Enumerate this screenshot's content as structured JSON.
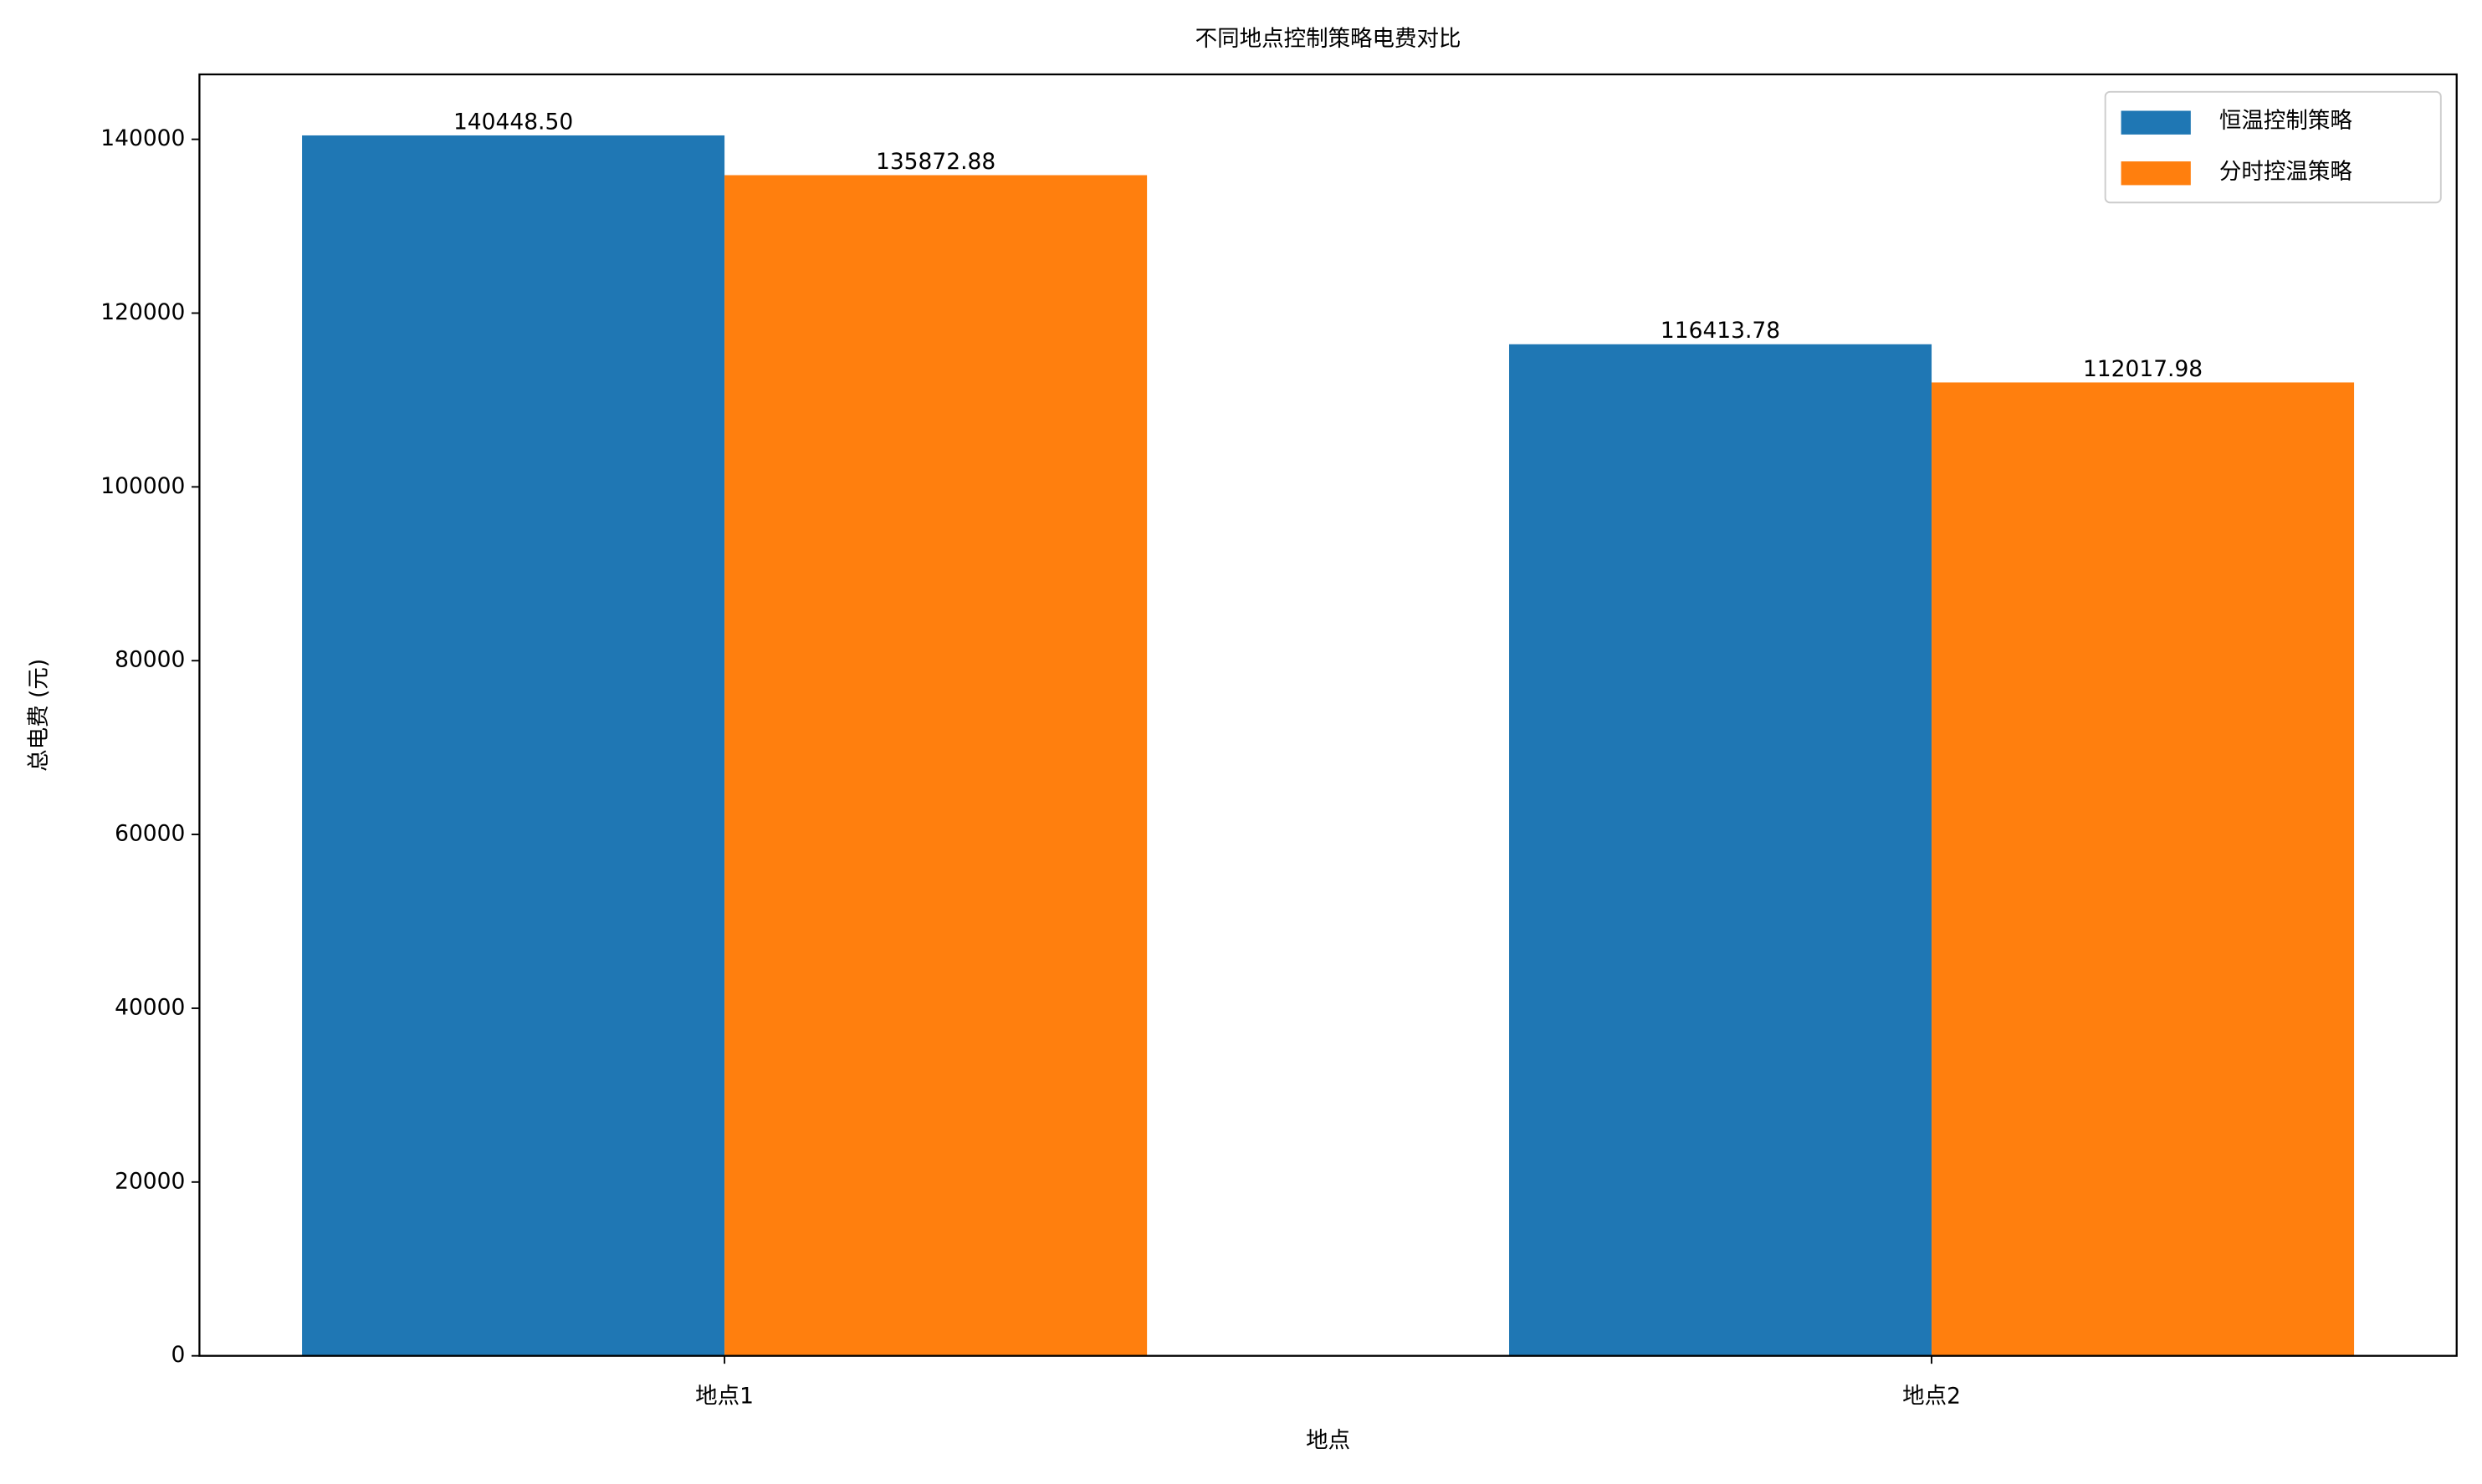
{
  "chart_data": {
    "type": "bar",
    "title": "不同地点控制策略电费对比",
    "x_label": "地点",
    "y_label": "总电费 (元)",
    "categories": [
      "地点1",
      "地点2"
    ],
    "series": [
      {
        "name": "恒温控制策略",
        "color": "#1f77b4",
        "values": [
          140448.5,
          116413.78
        ],
        "value_labels": [
          "140448.50",
          "116413.78"
        ]
      },
      {
        "name": "分时控温策略",
        "color": "#ff7f0e",
        "values": [
          135872.88,
          112017.98
        ],
        "value_labels": [
          "135872.88",
          "112017.98"
        ]
      }
    ],
    "ylim": [
      0,
      147470
    ],
    "yticks": [
      0,
      20000,
      40000,
      60000,
      80000,
      100000,
      120000,
      140000
    ],
    "legend": "upper right"
  }
}
